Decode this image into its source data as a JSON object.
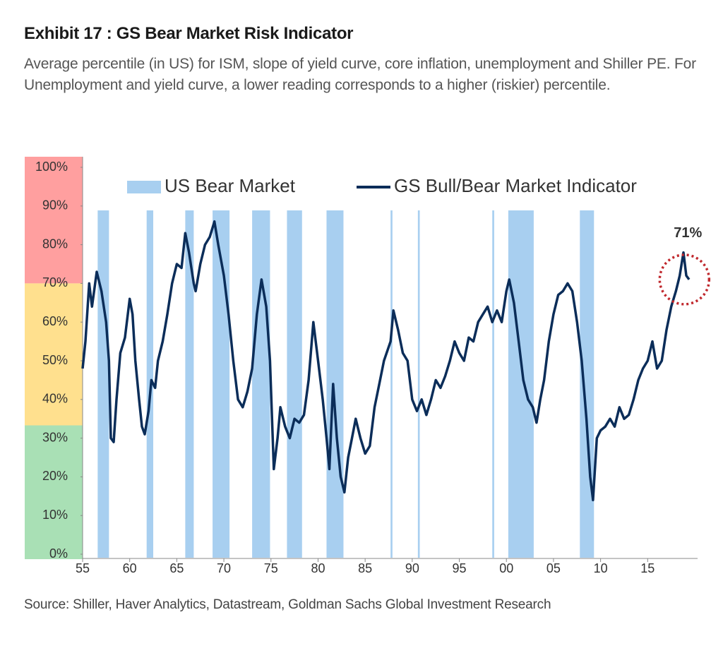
{
  "chart_data": {
    "type": "line",
    "title": "Exhibit 17 : GS Bear Market Risk Indicator",
    "subtitle": "Average percentile (in US) for ISM, slope of yield curve, core inflation, unemployment and Shiller PE. For Unemployment and yield curve, a lower reading corresponds to a higher (riskier) percentile.",
    "source": "Source: Shiller, Haver Analytics, Datastream, Goldman Sachs Global Investment Research",
    "legend": "top",
    "xlim": [
      1955,
      2020.3
    ],
    "ylim": [
      0,
      100
    ],
    "xticks": [
      {
        "value": 1955,
        "label": "55"
      },
      {
        "value": 1960,
        "label": "60"
      },
      {
        "value": 1965,
        "label": "65"
      },
      {
        "value": 1970,
        "label": "70"
      },
      {
        "value": 1975,
        "label": "75"
      },
      {
        "value": 1980,
        "label": "80"
      },
      {
        "value": 1985,
        "label": "85"
      },
      {
        "value": 1990,
        "label": "90"
      },
      {
        "value": 1995,
        "label": "95"
      },
      {
        "value": 2000,
        "label": "00"
      },
      {
        "value": 2005,
        "label": "05"
      },
      {
        "value": 2010,
        "label": "10"
      },
      {
        "value": 2015,
        "label": "15"
      }
    ],
    "yticks": [
      {
        "value": 0,
        "label": "0%"
      },
      {
        "value": 10,
        "label": "10%"
      },
      {
        "value": 20,
        "label": "20%"
      },
      {
        "value": 30,
        "label": "30%"
      },
      {
        "value": 40,
        "label": "40%"
      },
      {
        "value": 50,
        "label": "50%"
      },
      {
        "value": 60,
        "label": "60%"
      },
      {
        "value": 70,
        "label": "70%"
      },
      {
        "value": 80,
        "label": "80%"
      },
      {
        "value": 90,
        "label": "90%"
      },
      {
        "value": 100,
        "label": "100%"
      }
    ],
    "zones": [
      {
        "from": 70,
        "to": 100,
        "color": "#ff9f9f"
      },
      {
        "from": 33.3,
        "to": 70,
        "color": "#ffe08e"
      },
      {
        "from": 0,
        "to": 33.3,
        "color": "#a9e0b5"
      }
    ],
    "bear_markets": {
      "name": "US Bear Market",
      "color": "#a8cff0",
      "spans": [
        [
          1956.6,
          1957.8
        ],
        [
          1961.8,
          1962.5
        ],
        [
          1965.9,
          1966.8
        ],
        [
          1968.8,
          1970.6
        ],
        [
          1973.0,
          1974.9
        ],
        [
          1976.7,
          1978.3
        ],
        [
          1980.9,
          1982.7
        ],
        [
          1987.7,
          1987.9
        ],
        [
          1990.6,
          1990.8
        ],
        [
          1998.5,
          1998.7
        ],
        [
          2000.2,
          2002.9
        ],
        [
          2007.8,
          2009.3
        ]
      ]
    },
    "x": [
      1955.0,
      1955.3,
      1955.7,
      1956.0,
      1956.5,
      1957.0,
      1957.5,
      1957.8,
      1958.0,
      1958.3,
      1958.6,
      1959.0,
      1959.5,
      1960.0,
      1960.3,
      1960.6,
      1961.0,
      1961.3,
      1961.6,
      1962.0,
      1962.3,
      1962.7,
      1963.0,
      1963.5,
      1964.0,
      1964.5,
      1965.0,
      1965.5,
      1965.9,
      1966.3,
      1966.8,
      1967.0,
      1967.5,
      1968.0,
      1968.5,
      1969.0,
      1969.4,
      1970.0,
      1970.5,
      1971.0,
      1971.5,
      1972.0,
      1972.5,
      1973.0,
      1973.5,
      1974.0,
      1974.5,
      1974.9,
      1975.3,
      1975.7,
      1976.0,
      1976.5,
      1977.0,
      1977.5,
      1978.0,
      1978.5,
      1979.0,
      1979.5,
      1980.0,
      1980.5,
      1980.9,
      1981.2,
      1981.6,
      1982.0,
      1982.4,
      1982.8,
      1983.2,
      1983.6,
      1984.0,
      1984.5,
      1985.0,
      1985.5,
      1986.0,
      1986.5,
      1987.0,
      1987.7,
      1988.0,
      1988.5,
      1989.0,
      1989.5,
      1990.0,
      1990.5,
      1991.0,
      1991.5,
      1992.0,
      1992.5,
      1993.0,
      1993.5,
      1994.0,
      1994.5,
      1995.0,
      1995.5,
      1996.0,
      1996.5,
      1997.0,
      1997.5,
      1998.0,
      1998.5,
      1999.0,
      1999.5,
      2000.0,
      2000.3,
      2000.8,
      2001.3,
      2001.8,
      2002.3,
      2002.8,
      2003.2,
      2003.6,
      2004.0,
      2004.5,
      2005.0,
      2005.5,
      2006.0,
      2006.5,
      2007.0,
      2007.5,
      2008.0,
      2008.5,
      2008.9,
      2009.2,
      2009.6,
      2010.0,
      2010.5,
      2011.0,
      2011.5,
      2012.0,
      2012.5,
      2013.0,
      2013.5,
      2014.0,
      2014.5,
      2015.0,
      2015.5,
      2016.0,
      2016.5,
      2017.0,
      2017.5,
      2018.0,
      2018.4,
      2018.8,
      2019.1,
      2019.4
    ],
    "series": [
      {
        "name": "GS Bull/Bear Market Indicator",
        "color": "#0b2d59",
        "values": [
          48,
          55,
          70,
          64,
          73,
          68,
          60,
          50,
          30,
          29,
          40,
          52,
          56,
          66,
          62,
          50,
          40,
          33,
          31,
          37,
          45,
          43,
          50,
          55,
          62,
          70,
          75,
          74,
          83,
          78,
          70,
          68,
          75,
          80,
          82,
          86,
          80,
          72,
          62,
          50,
          40,
          38,
          42,
          48,
          62,
          71,
          64,
          50,
          22,
          30,
          38,
          33,
          30,
          35,
          34,
          36,
          45,
          60,
          50,
          40,
          30,
          22,
          44,
          30,
          20,
          16,
          25,
          30,
          35,
          30,
          26,
          28,
          38,
          44,
          50,
          55,
          63,
          58,
          52,
          50,
          40,
          37,
          40,
          36,
          40,
          45,
          43,
          46,
          50,
          55,
          52,
          50,
          56,
          55,
          60,
          62,
          64,
          60,
          63,
          60,
          68,
          71,
          65,
          55,
          45,
          40,
          38,
          34,
          40,
          45,
          55,
          62,
          67,
          68,
          70,
          68,
          60,
          50,
          35,
          20,
          14,
          30,
          32,
          33,
          35,
          33,
          38,
          35,
          36,
          40,
          45,
          48,
          50,
          55,
          48,
          50,
          58,
          64,
          68,
          72,
          78,
          72,
          71
        ]
      }
    ],
    "annotation": {
      "text": "71%",
      "x": 2018.9,
      "value": 71,
      "color": "#c0282d"
    }
  }
}
